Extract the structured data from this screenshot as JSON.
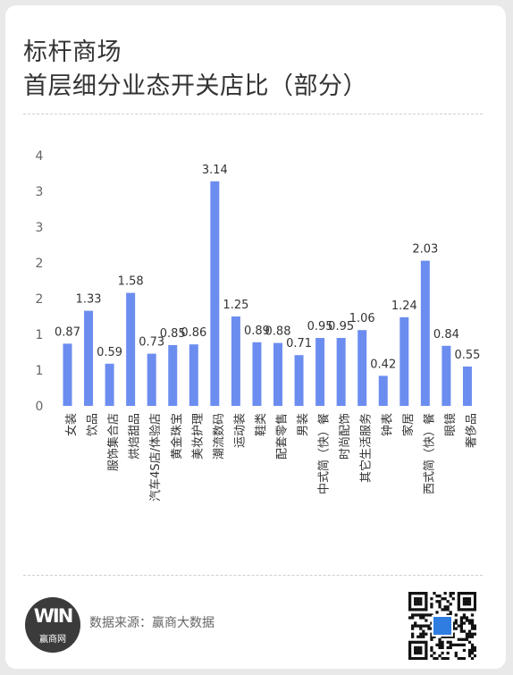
{
  "header": {
    "title_line1": "标杆商场",
    "title_line2": "首层细分业态开关店比（部分）"
  },
  "footer": {
    "source": "数据来源：赢商大数据",
    "logo_name": "赢商网",
    "logo_mark": "WIN"
  },
  "colors": {
    "bar": "#6c8df0",
    "axis_text": "#666666",
    "label_text": "#333333"
  },
  "chart_data": {
    "type": "bar",
    "title": "标杆商场 首层细分业态开关店比（部分）",
    "categories": [
      "女装",
      "饮品",
      "服饰集合店",
      "烘焙甜品",
      "汽车4S店/体验店",
      "黄金珠宝",
      "美妆护理",
      "潮流数码",
      "运动装",
      "鞋类",
      "配套零售",
      "男装",
      "中式简（快）餐",
      "时尚配饰",
      "其它生活服务",
      "钟表",
      "家居",
      "西式简（快）餐",
      "眼镜",
      "奢侈品"
    ],
    "values": [
      0.87,
      1.33,
      0.59,
      1.58,
      0.73,
      0.85,
      0.86,
      3.14,
      1.25,
      0.89,
      0.88,
      0.71,
      0.95,
      0.95,
      1.06,
      0.42,
      1.24,
      2.03,
      0.84,
      0.55
    ],
    "y_tick_labels": [
      "0",
      "1",
      "1",
      "2",
      "2",
      "3",
      "3",
      "4"
    ],
    "ylim": [
      0,
      3.5
    ],
    "xlabel": "",
    "ylabel": "",
    "grid": false,
    "legend": "none"
  }
}
